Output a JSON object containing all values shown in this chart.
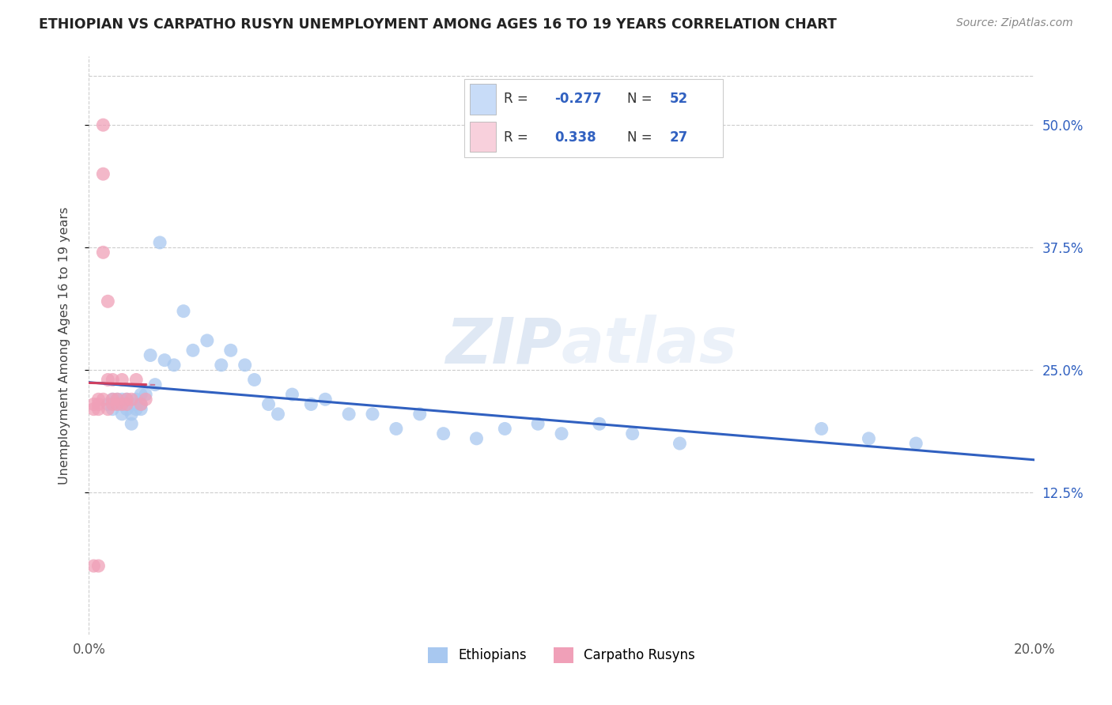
{
  "title": "ETHIOPIAN VS CARPATHO RUSYN UNEMPLOYMENT AMONG AGES 16 TO 19 YEARS CORRELATION CHART",
  "source": "Source: ZipAtlas.com",
  "ylabel": "Unemployment Among Ages 16 to 19 years",
  "xlim": [
    0.0,
    0.2
  ],
  "ylim": [
    -0.02,
    0.57
  ],
  "xticks": [
    0.0,
    0.05,
    0.1,
    0.15,
    0.2
  ],
  "xticklabels": [
    "0.0%",
    "",
    "",
    "",
    "20.0%"
  ],
  "yticks": [
    0.125,
    0.25,
    0.375,
    0.5
  ],
  "yticklabels": [
    "12.5%",
    "25.0%",
    "37.5%",
    "50.0%"
  ],
  "R_blue": -0.277,
  "N_blue": 52,
  "R_pink": 0.338,
  "N_pink": 27,
  "blue_color": "#a8c8f0",
  "pink_color": "#f0a0b8",
  "blue_line_color": "#3060c0",
  "pink_line_color": "#d04060",
  "legend_blue_face": "#c8dcf8",
  "legend_pink_face": "#f8d0dc",
  "watermark_color": "#d0dff0",
  "blue_scatter_x": [
    0.004,
    0.005,
    0.005,
    0.006,
    0.006,
    0.007,
    0.007,
    0.007,
    0.008,
    0.008,
    0.008,
    0.009,
    0.009,
    0.01,
    0.01,
    0.01,
    0.011,
    0.011,
    0.011,
    0.012,
    0.013,
    0.014,
    0.015,
    0.016,
    0.018,
    0.02,
    0.022,
    0.025,
    0.028,
    0.03,
    0.033,
    0.035,
    0.038,
    0.04,
    0.043,
    0.047,
    0.05,
    0.055,
    0.06,
    0.065,
    0.07,
    0.075,
    0.082,
    0.088,
    0.095,
    0.1,
    0.108,
    0.115,
    0.125,
    0.155,
    0.165,
    0.175
  ],
  "blue_scatter_y": [
    0.215,
    0.22,
    0.21,
    0.215,
    0.22,
    0.205,
    0.215,
    0.22,
    0.21,
    0.215,
    0.22,
    0.195,
    0.205,
    0.21,
    0.22,
    0.215,
    0.225,
    0.21,
    0.215,
    0.225,
    0.265,
    0.235,
    0.38,
    0.26,
    0.255,
    0.31,
    0.27,
    0.28,
    0.255,
    0.27,
    0.255,
    0.24,
    0.215,
    0.205,
    0.225,
    0.215,
    0.22,
    0.205,
    0.205,
    0.19,
    0.205,
    0.185,
    0.18,
    0.19,
    0.195,
    0.185,
    0.195,
    0.185,
    0.175,
    0.19,
    0.18,
    0.175
  ],
  "pink_scatter_x": [
    0.001,
    0.001,
    0.001,
    0.002,
    0.002,
    0.002,
    0.002,
    0.003,
    0.003,
    0.003,
    0.003,
    0.004,
    0.004,
    0.004,
    0.005,
    0.005,
    0.005,
    0.006,
    0.006,
    0.007,
    0.007,
    0.008,
    0.008,
    0.009,
    0.01,
    0.011,
    0.012
  ],
  "pink_scatter_y": [
    0.215,
    0.21,
    0.05,
    0.22,
    0.215,
    0.21,
    0.05,
    0.5,
    0.45,
    0.37,
    0.22,
    0.32,
    0.24,
    0.21,
    0.22,
    0.24,
    0.215,
    0.215,
    0.22,
    0.215,
    0.24,
    0.215,
    0.22,
    0.22,
    0.24,
    0.215,
    0.22
  ]
}
